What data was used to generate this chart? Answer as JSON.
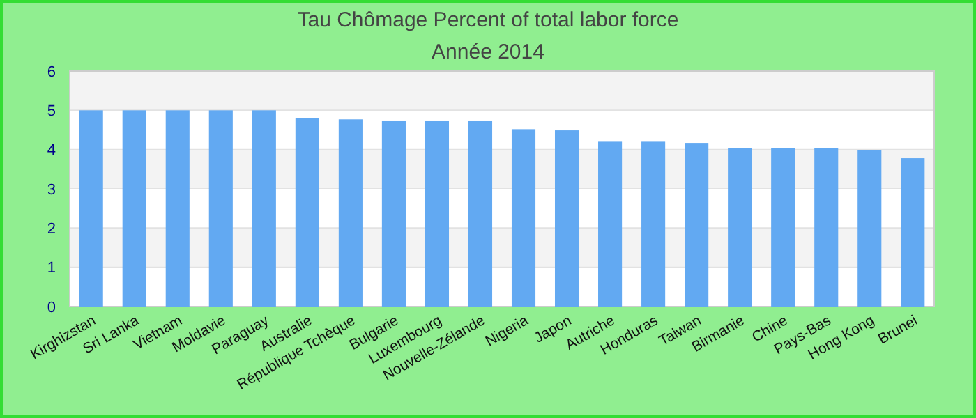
{
  "chart_data": {
    "type": "bar",
    "title": "Tau Chômage  Percent of total labor force",
    "subtitle": "Année 2014",
    "categories": [
      "Kirghizstan",
      "Sri Lanka",
      "Vietnam",
      "Moldavie",
      "Paraguay",
      "Australie",
      "République Tchèque",
      "Bulgarie",
      "Luxembourg",
      "Nouvelle-Zélande",
      "Nigeria",
      "Japon",
      "Autriche",
      "Honduras",
      "Taiwan",
      "Birmanie",
      "Chine",
      "Pays-Bas",
      "Hong Kong",
      "Brunei"
    ],
    "values": [
      5.0,
      5.0,
      5.0,
      5.0,
      5.0,
      4.8,
      4.77,
      4.74,
      4.74,
      4.74,
      4.52,
      4.49,
      4.2,
      4.2,
      4.17,
      4.03,
      4.03,
      4.03,
      3.99,
      3.78
    ],
    "color": "#62a9f2",
    "ylim": [
      0,
      6
    ],
    "yticks": [
      0,
      1,
      2,
      3,
      4,
      5,
      6
    ],
    "grid": "y"
  }
}
